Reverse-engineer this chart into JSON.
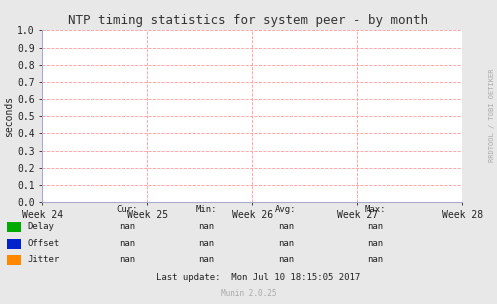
{
  "title": "NTP timing statistics for system peer - by month",
  "ylabel": "seconds",
  "xlabels": [
    "Week 24",
    "Week 25",
    "Week 26",
    "Week 27",
    "Week 28"
  ],
  "ylim": [
    0.0,
    1.0
  ],
  "yticks": [
    0.0,
    0.1,
    0.2,
    0.3,
    0.4,
    0.5,
    0.6,
    0.7,
    0.8,
    0.9,
    1.0
  ],
  "bg_color": "#e8e8e8",
  "plot_bg_color": "#ffffff",
  "grid_color": "#ff9999",
  "grid_style": "--",
  "axis_color": "#aaaacc",
  "title_color": "#333333",
  "label_color": "#222222",
  "legend": [
    {
      "label": "Delay",
      "color": "#00aa00"
    },
    {
      "label": "Offset",
      "color": "#0022cc"
    },
    {
      "label": "Jitter",
      "color": "#ff8800"
    }
  ],
  "stats_header": [
    "Cur:",
    "Min:",
    "Avg:",
    "Max:"
  ],
  "stats_rows": [
    [
      "nan",
      "nan",
      "nan",
      "nan"
    ],
    [
      "nan",
      "nan",
      "nan",
      "nan"
    ],
    [
      "nan",
      "nan",
      "nan",
      "nan"
    ]
  ],
  "last_update": "Last update:  Mon Jul 10 18:15:05 2017",
  "munin_version": "Munin 2.0.25",
  "watermark": "RRDTOOL / TOBI OETIKER",
  "font_family": "DejaVu Sans Mono",
  "title_fontsize": 9,
  "tick_fontsize": 7,
  "ylabel_fontsize": 7,
  "stats_fontsize": 6.5,
  "watermark_fontsize": 5
}
